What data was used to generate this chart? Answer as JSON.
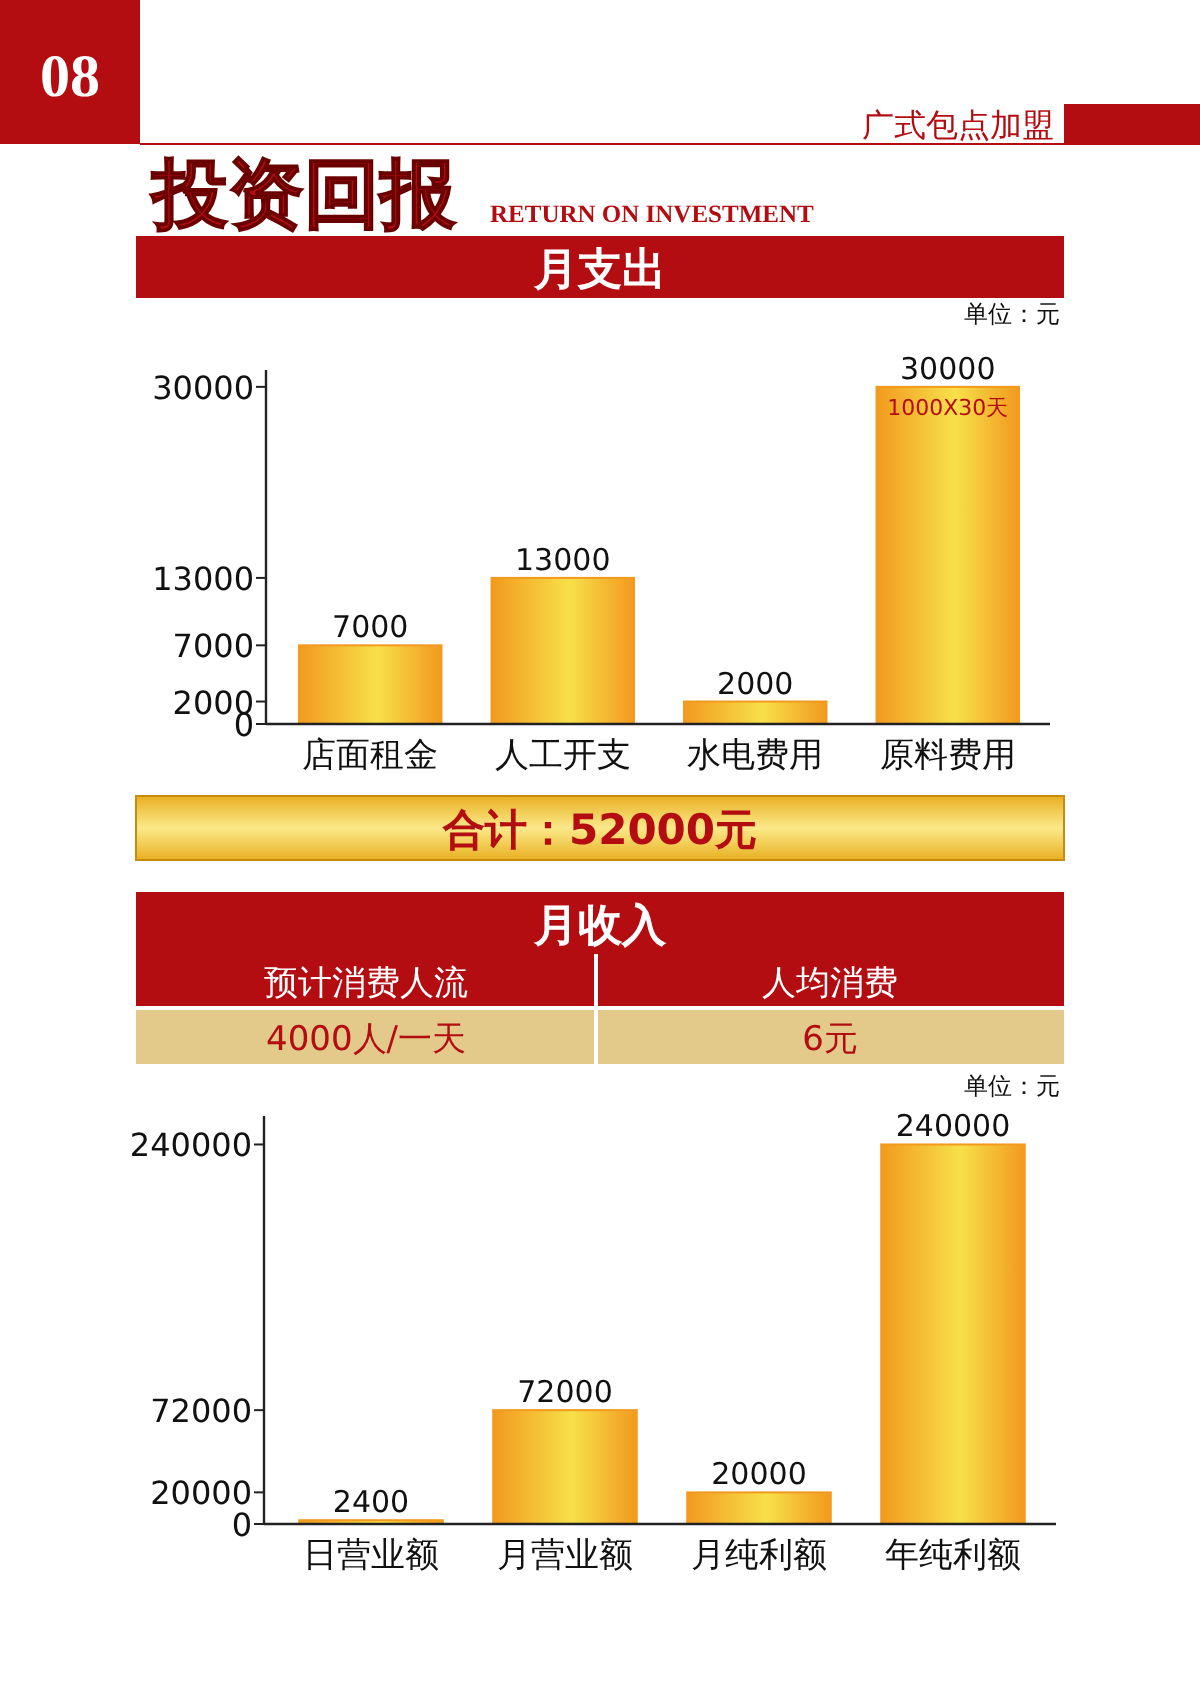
{
  "chart_data": [
    {
      "type": "bar",
      "title": "月支出",
      "categories": [
        "店面租金",
        "人工开支",
        "水电费用",
        "原料费用"
      ],
      "values": [
        7000,
        13000,
        2000,
        30000
      ],
      "color": "#f29a1e",
      "ylim": [
        0,
        31500
      ],
      "yticks": [
        0,
        2000,
        7000,
        13000,
        30000
      ],
      "data_labels": true,
      "annotations": [
        "1000X30天",
        "08",
        "广式包点加盟",
        "投资回报",
        "RETURN ON INVESTMENT",
        "单位：元",
        "合计：52000元"
      ]
    },
    {
      "type": "bar",
      "title": "月收入",
      "categories": [
        "日营业额",
        "月营业额",
        "月纯利额",
        "年纯利额"
      ],
      "values": [
        2400,
        72000,
        20000,
        240000
      ],
      "color": "#f29a1e",
      "ylim": [
        0,
        258000
      ],
      "yticks": [
        0,
        20000,
        72000,
        240000
      ],
      "data_labels": true,
      "annotations": [
        "预计消费人流",
        "人均消费",
        "4000人/一天",
        "6元",
        "单位：元"
      ]
    }
  ]
}
